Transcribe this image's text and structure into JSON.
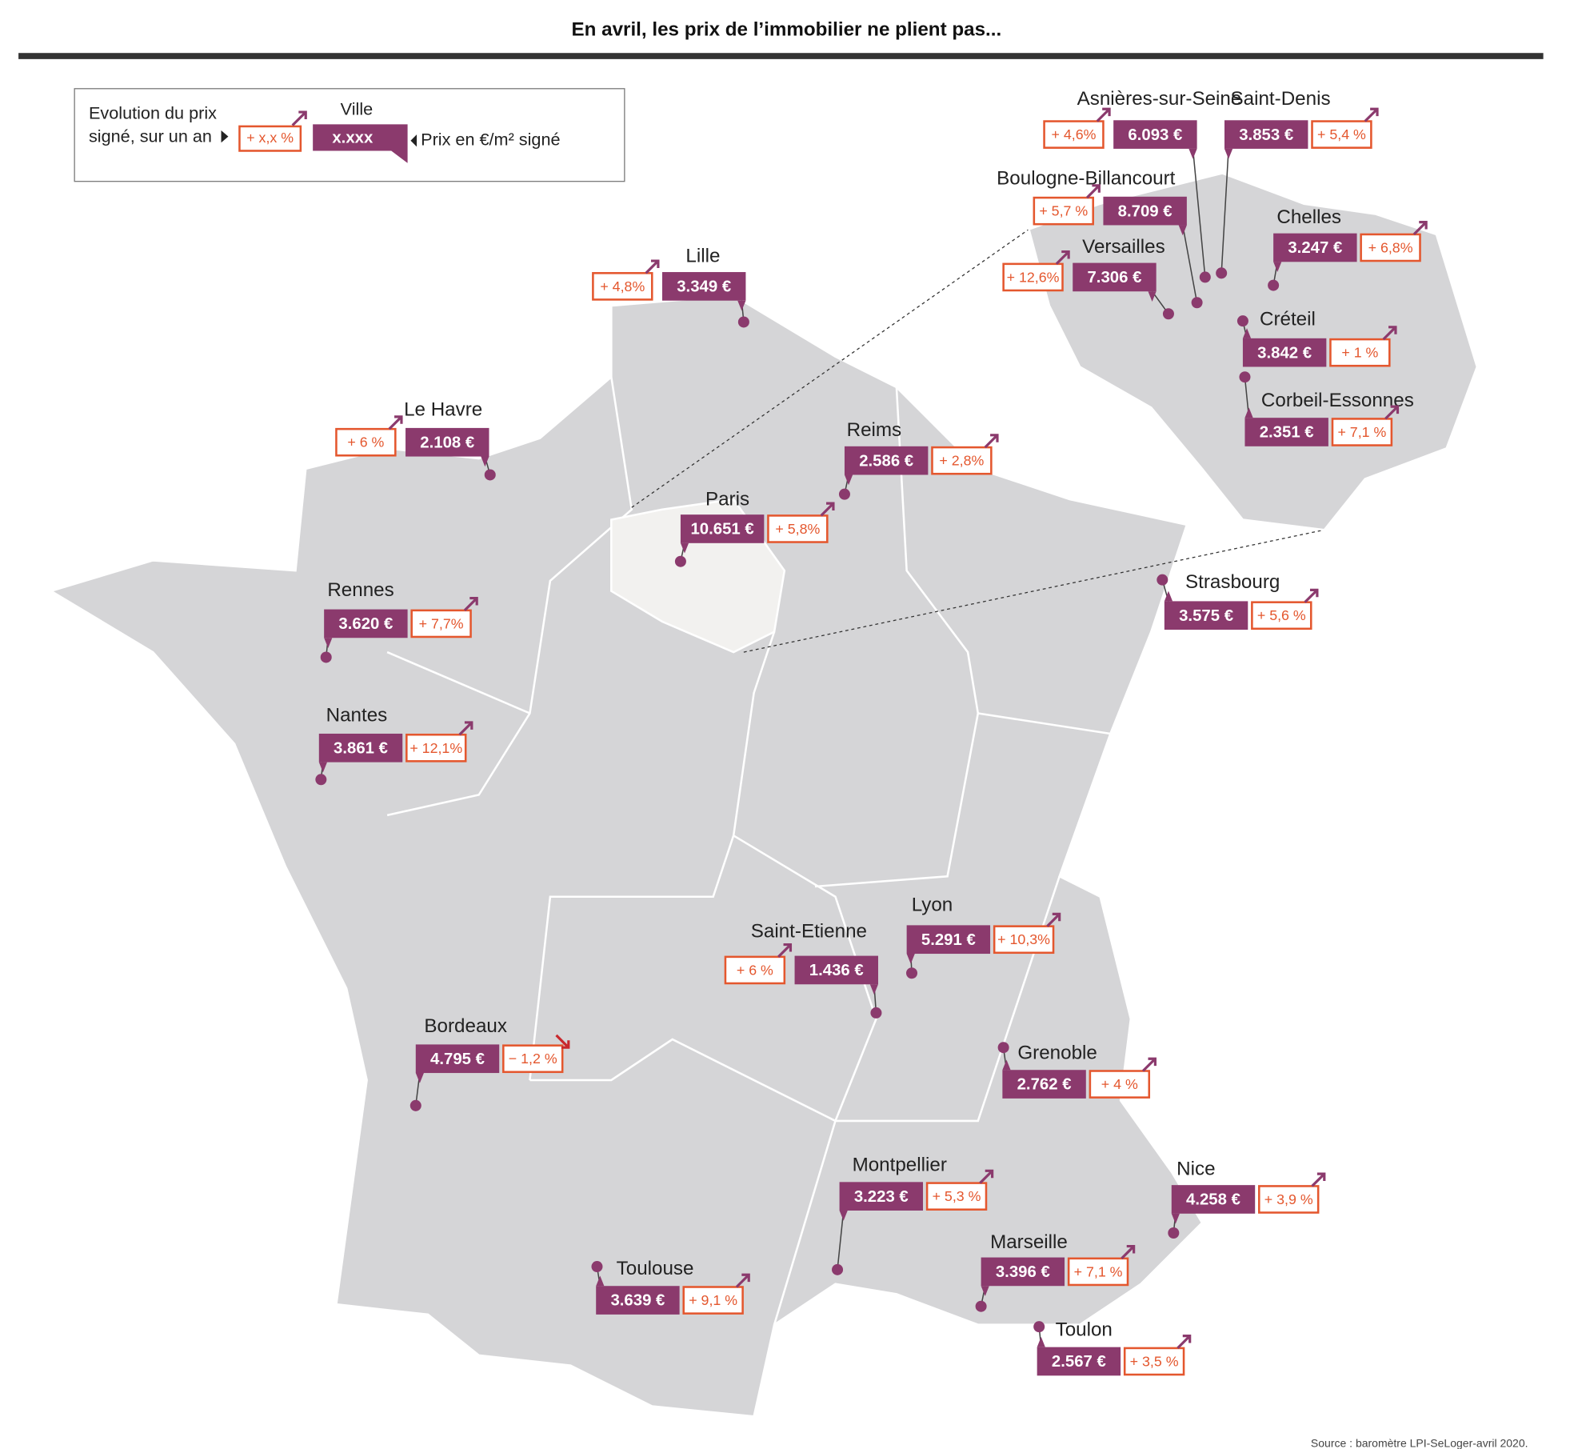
{
  "title": "En avril, les prix de l’immobilier ne plient pas...",
  "legend": {
    "evolution_line1": "Evolution du prix",
    "evolution_line2": "signé, sur un an",
    "example_change": "+ x,x %",
    "city": "Ville",
    "example_price": "x.xxx",
    "price_label": "Prix en €/m² signé"
  },
  "cities": [
    {
      "name": "Lille",
      "price": "3.349 €",
      "change": "+ 4,8%"
    },
    {
      "name": "Le Havre",
      "price": "2.108 €",
      "change": "+ 6 %"
    },
    {
      "name": "Reims",
      "price": "2.586 €",
      "change": "+ 2,8%"
    },
    {
      "name": "Paris",
      "price": "10.651 €",
      "change": "+ 5,8%"
    },
    {
      "name": "Rennes",
      "price": "3.620 €",
      "change": "+ 7,7%"
    },
    {
      "name": "Nantes",
      "price": "3.861 €",
      "change": "+ 12,1%"
    },
    {
      "name": "Strasbourg",
      "price": "3.575 €",
      "change": "+ 5,6 %"
    },
    {
      "name": "Saint-Etienne",
      "price": "1.436 €",
      "change": "+ 6 %"
    },
    {
      "name": "Lyon",
      "price": "5.291 €",
      "change": "+ 10,3%"
    },
    {
      "name": "Bordeaux",
      "price": "4.795 €",
      "change": "− 1,2 %"
    },
    {
      "name": "Grenoble",
      "price": "2.762 €",
      "change": "+ 4 %"
    },
    {
      "name": "Nice",
      "price": "4.258 €",
      "change": "+ 3,9 %"
    },
    {
      "name": "Montpellier",
      "price": "3.223 €",
      "change": "+ 5,3 %"
    },
    {
      "name": "Marseille",
      "price": "3.396 €",
      "change": "+ 7,1 %"
    },
    {
      "name": "Toulouse",
      "price": "3.639 €",
      "change": "+ 9,1 %"
    },
    {
      "name": "Toulon",
      "price": "2.567 €",
      "change": "+ 3,5 %"
    },
    {
      "name": "Asnières-sur-Seine",
      "price": "6.093 €",
      "change": "+ 4,6%"
    },
    {
      "name": "Saint-Denis",
      "price": "3.853 €",
      "change": "+ 5,4 %"
    },
    {
      "name": "Boulogne-Billancourt",
      "price": "8.709 €",
      "change": "+ 5,7 %"
    },
    {
      "name": "Versailles",
      "price": "7.306 €",
      "change": "+ 12,6%"
    },
    {
      "name": "Chelles",
      "price": "3.247 €",
      "change": "+ 6,8%"
    },
    {
      "name": "Créteil",
      "price": "3.842 €",
      "change": "+ 1 %"
    },
    {
      "name": "Corbeil-Essonnes",
      "price": "2.351 €",
      "change": "+ 7,1 %"
    }
  ],
  "source": "Source : baromètre LPI-SeLoger-avril 2020."
}
